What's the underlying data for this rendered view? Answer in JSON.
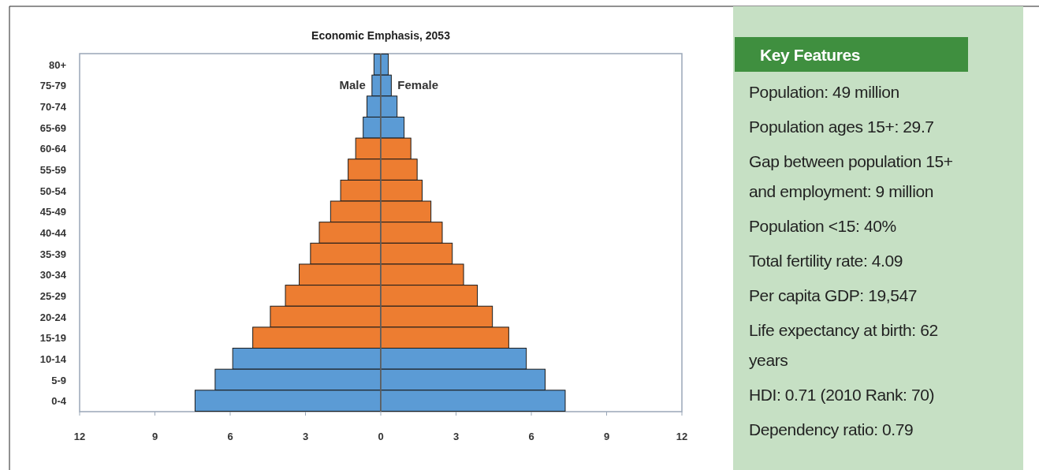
{
  "chart_data": [
    {
      "type": "bar",
      "orientation": "horizontal",
      "stacked": true,
      "title": "Economic Emphasis, 2053",
      "categories": [
        "80+",
        "75-79",
        "70-74",
        "65-69",
        "60-64",
        "55-59",
        "50-54",
        "45-49",
        "40-44",
        "35-39",
        "30-34",
        "25-29",
        "20-24",
        "15-19",
        "10-14",
        "5-9",
        "0-4"
      ],
      "series": [
        {
          "name": "Male",
          "values": [
            -0.27,
            -0.35,
            -0.55,
            -0.7,
            -1.0,
            -1.3,
            -1.6,
            -2.0,
            -2.45,
            -2.8,
            -3.25,
            -3.8,
            -4.4,
            -5.1,
            -5.9,
            -6.6,
            -7.4
          ],
          "colors": [
            "#5b9bd5",
            "#5b9bd5",
            "#5b9bd5",
            "#5b9bd5",
            "#ed7d31",
            "#ed7d31",
            "#ed7d31",
            "#ed7d31",
            "#ed7d31",
            "#ed7d31",
            "#ed7d31",
            "#ed7d31",
            "#ed7d31",
            "#ed7d31",
            "#5b9bd5",
            "#5b9bd5",
            "#5b9bd5"
          ]
        },
        {
          "name": "Female",
          "values": [
            0.3,
            0.42,
            0.65,
            0.93,
            1.2,
            1.45,
            1.65,
            2.0,
            2.45,
            2.85,
            3.3,
            3.85,
            4.45,
            5.1,
            5.8,
            6.55,
            7.35
          ],
          "colors": [
            "#5b9bd5",
            "#5b9bd5",
            "#5b9bd5",
            "#5b9bd5",
            "#ed7d31",
            "#ed7d31",
            "#ed7d31",
            "#ed7d31",
            "#ed7d31",
            "#ed7d31",
            "#ed7d31",
            "#ed7d31",
            "#ed7d31",
            "#ed7d31",
            "#5b9bd5",
            "#5b9bd5",
            "#5b9bd5"
          ]
        }
      ],
      "xlim": [
        -12,
        12
      ],
      "xticks": [
        {
          "value": -12,
          "label": "12"
        },
        {
          "value": -9,
          "label": "9"
        },
        {
          "value": -6,
          "label": "6"
        },
        {
          "value": -3,
          "label": "3"
        },
        0,
        3,
        6,
        9,
        12
      ],
      "legend": false
    },
    {
      "type": "other",
      "title": "Key Features",
      "annotations": [
        "Population: 49 million",
        "Population ages 15+: 29.7",
        "Gap between population 15+ and employment: 9 million",
        "Population <15: 40%",
        "Total fertility rate: 4.09",
        "Per capita GDP: 19,547",
        "Life expectancy at birth: 62 years",
        "HDI: 0.71 (2010 Rank: 70)",
        "Dependency ratio: 0.79"
      ]
    }
  ]
}
